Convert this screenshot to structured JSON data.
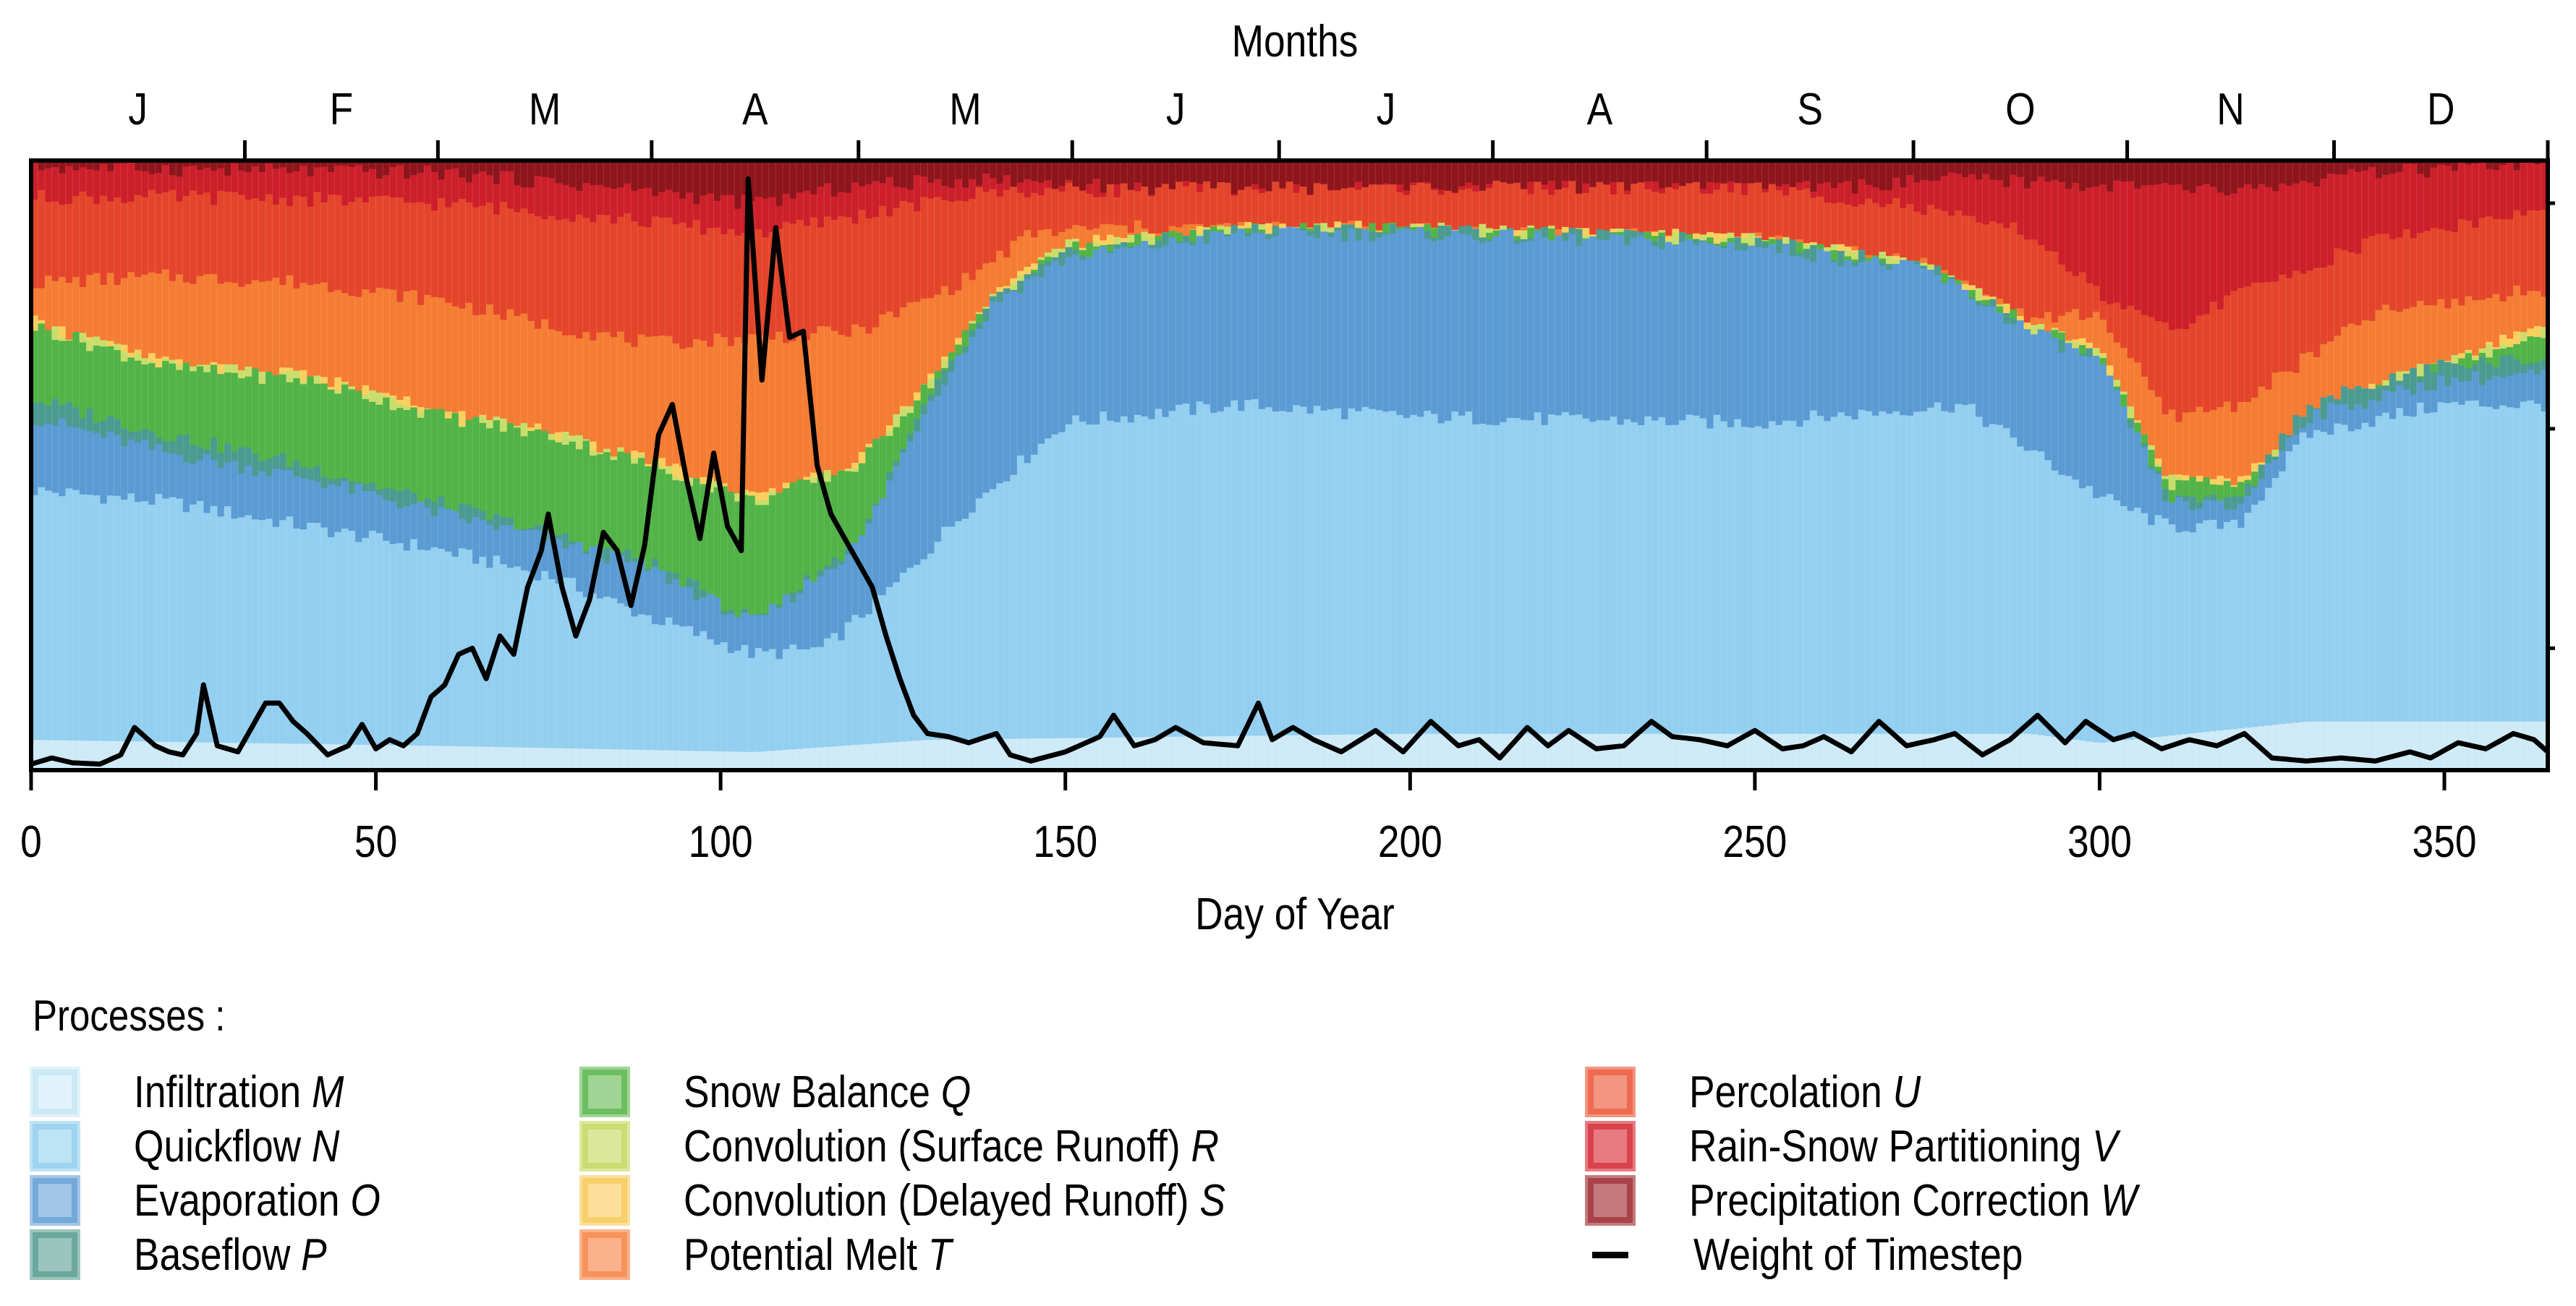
{
  "chart_data": {
    "type": "area",
    "subtype": "stacked-bar-100-percent-with-line",
    "title": "",
    "top_axis_label": "Months",
    "xlabel": "Day of Year",
    "ylabel": "",
    "xlim": [
      0,
      365
    ],
    "ylim": [
      0,
      1
    ],
    "x_ticks": [
      0,
      50,
      100,
      150,
      200,
      250,
      300,
      350
    ],
    "x_tick_labels": [
      "0",
      "50",
      "100",
      "150",
      "200",
      "250",
      "300",
      "350"
    ],
    "month_labels": [
      "J",
      "F",
      "M",
      "A",
      "M",
      "J",
      "J",
      "A",
      "S",
      "O",
      "N",
      "D"
    ],
    "month_start_days": [
      0,
      31,
      59,
      90,
      120,
      151,
      181,
      212,
      243,
      273,
      304,
      334,
      365
    ],
    "grid": false,
    "legend_title": "Processes :",
    "legend_position": "bottom",
    "layers_note": "Each series gives the cumulative upper boundary (fraction of total, 0-1) at keypoint days; layers stack bottom-to-top in listed order; linear interpolation between keypoints.",
    "series": [
      {
        "name": "Infiltration",
        "symbol": "M",
        "color": "#cfeaf7",
        "legend_color": "#e0f3fb",
        "legend_border": "#cde9f6",
        "days": [
          0,
          60,
          105,
          130,
          200,
          290,
          300,
          330,
          365
        ],
        "cum_top": [
          0.05,
          0.04,
          0.03,
          0.05,
          0.06,
          0.06,
          0.045,
          0.08,
          0.08
        ]
      },
      {
        "name": "Quickflow",
        "symbol": "N",
        "color": "#93cff0",
        "legend_color": "#bde3f5",
        "legend_border": "#9fd4f0",
        "days": [
          0,
          20,
          40,
          60,
          75,
          90,
          105,
          115,
          125,
          135,
          150,
          175,
          200,
          250,
          280,
          300,
          310,
          320,
          330,
          350,
          365
        ],
        "cum_top": [
          0.46,
          0.44,
          0.4,
          0.36,
          0.32,
          0.25,
          0.19,
          0.2,
          0.3,
          0.42,
          0.57,
          0.6,
          0.58,
          0.57,
          0.6,
          0.45,
          0.4,
          0.4,
          0.55,
          0.6,
          0.6
        ]
      },
      {
        "name": "Evaporation",
        "symbol": "O",
        "color": "#5b9bd3",
        "legend_color": "#a3c5e6",
        "legend_border": "#74a9da",
        "days": [
          0,
          20,
          40,
          60,
          75,
          90,
          105,
          120,
          130,
          140,
          150,
          175,
          200,
          250,
          275,
          290,
          300,
          310,
          320,
          330,
          350,
          365
        ],
        "cum_top": [
          0.58,
          0.52,
          0.48,
          0.42,
          0.38,
          0.33,
          0.24,
          0.37,
          0.6,
          0.77,
          0.84,
          0.88,
          0.88,
          0.86,
          0.82,
          0.72,
          0.67,
          0.44,
          0.43,
          0.58,
          0.64,
          0.65
        ]
      },
      {
        "name": "Baseflow",
        "symbol": "P",
        "color": "#4b9b91",
        "legend_color": "#9bc4bd",
        "legend_border": "#6aa89e",
        "days": [
          0,
          20,
          40,
          60,
          75,
          90,
          105,
          120,
          130,
          140,
          150,
          175,
          200,
          250,
          275,
          290,
          300,
          310,
          320,
          330,
          350,
          365
        ],
        "cum_top": [
          0.61,
          0.55,
          0.5,
          0.435,
          0.39,
          0.34,
          0.245,
          0.375,
          0.605,
          0.775,
          0.845,
          0.886,
          0.886,
          0.868,
          0.826,
          0.724,
          0.674,
          0.446,
          0.437,
          0.6,
          0.665,
          0.675
        ]
      },
      {
        "name": "Snow Balance",
        "symbol": "Q",
        "color": "#52b347",
        "legend_color": "#a1d595",
        "legend_border": "#6cbf60",
        "days": [
          0,
          20,
          40,
          60,
          75,
          90,
          105,
          120,
          130,
          140,
          150,
          175,
          200,
          250,
          275,
          290,
          300,
          310,
          320,
          340,
          365
        ],
        "cum_top": [
          0.73,
          0.66,
          0.64,
          0.58,
          0.55,
          0.5,
          0.44,
          0.5,
          0.63,
          0.78,
          0.855,
          0.886,
          0.886,
          0.868,
          0.826,
          0.728,
          0.68,
          0.47,
          0.47,
          0.63,
          0.72
        ]
      },
      {
        "name": "Convolution (Surface Runoff)",
        "symbol": "R",
        "color": "#c9dd6b",
        "legend_color": "#dbe89c",
        "legend_border": "#cbdc74",
        "days": [
          0,
          20,
          40,
          60,
          75,
          90,
          105,
          120,
          130,
          140,
          150,
          175,
          200,
          250,
          275,
          290,
          300,
          310,
          320,
          340,
          365
        ],
        "cum_top": [
          0.733,
          0.663,
          0.643,
          0.583,
          0.553,
          0.503,
          0.443,
          0.503,
          0.633,
          0.783,
          0.858,
          0.888,
          0.888,
          0.87,
          0.828,
          0.731,
          0.683,
          0.473,
          0.473,
          0.633,
          0.723
        ]
      },
      {
        "name": "Convolution (Delayed Runoff)",
        "symbol": "S",
        "color": "#f9cf5e",
        "legend_color": "#fbdf9b",
        "legend_border": "#f7cf6b",
        "days": [
          0,
          20,
          40,
          60,
          75,
          90,
          105,
          120,
          130,
          140,
          150,
          175,
          200,
          250,
          275,
          290,
          300,
          310,
          320,
          340,
          365
        ],
        "cum_top": [
          0.736,
          0.666,
          0.646,
          0.586,
          0.556,
          0.506,
          0.446,
          0.506,
          0.636,
          0.786,
          0.861,
          0.89,
          0.89,
          0.872,
          0.83,
          0.734,
          0.686,
          0.476,
          0.476,
          0.636,
          0.726
        ]
      },
      {
        "name": "Potential Melt",
        "symbol": "T",
        "color": "#f57c33",
        "legend_color": "#fbb28c",
        "legend_border": "#f7925a",
        "days": [
          0,
          20,
          40,
          60,
          75,
          90,
          105,
          120,
          135,
          145,
          155,
          175,
          200,
          250,
          275,
          290,
          300,
          310,
          320,
          340,
          365
        ],
        "cum_top": [
          0.8,
          0.81,
          0.8,
          0.77,
          0.73,
          0.7,
          0.71,
          0.72,
          0.8,
          0.88,
          0.89,
          0.89,
          0.89,
          0.872,
          0.83,
          0.74,
          0.75,
          0.58,
          0.6,
          0.75,
          0.79
        ]
      },
      {
        "name": "Percolation",
        "symbol": "U",
        "color": "#e4452a",
        "legend_color": "#f29680",
        "legend_border": "#ee6b52",
        "days": [
          0,
          30,
          60,
          90,
          105,
          120,
          140,
          175,
          200,
          250,
          270,
          290,
          300,
          310,
          320,
          340,
          365
        ],
        "cum_top": [
          0.94,
          0.94,
          0.93,
          0.9,
          0.88,
          0.91,
          0.95,
          0.955,
          0.955,
          0.955,
          0.93,
          0.88,
          0.78,
          0.72,
          0.78,
          0.87,
          0.92
        ]
      },
      {
        "name": "Rain-Snow Partitioning",
        "symbol": "V",
        "color": "#cd1f2a",
        "legend_color": "#e87b82",
        "legend_border": "#d9434d",
        "days": [
          0,
          30,
          60,
          90,
          105,
          120,
          140,
          160,
          200,
          260,
          280,
          300,
          320,
          340,
          365
        ],
        "cum_top": [
          0.99,
          0.985,
          0.98,
          0.95,
          0.93,
          0.96,
          0.97,
          0.955,
          0.955,
          0.955,
          0.97,
          0.96,
          0.95,
          0.98,
          0.995
        ]
      },
      {
        "name": "Precipitation Correction",
        "symbol": "W",
        "color": "#8e151b",
        "legend_color": "#c47a7c",
        "legend_border": "#a8434a",
        "days": [
          0,
          365
        ],
        "cum_top": [
          1.0,
          1.0
        ]
      }
    ],
    "line": {
      "name": "Weight of Timestep",
      "color": "#000000",
      "note": "values as fraction of plot height (0 = bottom, 1 = top)",
      "days": [
        0,
        3,
        6,
        10,
        13,
        15,
        18,
        20,
        22,
        24,
        25,
        27,
        30,
        32,
        34,
        36,
        38,
        40,
        43,
        46,
        48,
        50,
        52,
        54,
        56,
        58,
        60,
        62,
        64,
        66,
        68,
        70,
        72,
        74,
        75,
        77,
        79,
        81,
        83,
        85,
        87,
        89,
        91,
        93,
        95,
        97,
        99,
        101,
        103,
        104,
        106,
        108,
        110,
        112,
        114,
        116,
        118,
        120,
        122,
        124,
        126,
        128,
        130,
        133,
        136,
        140,
        142,
        145,
        150,
        155,
        157,
        160,
        163,
        166,
        170,
        175,
        178,
        180,
        183,
        186,
        190,
        195,
        199,
        203,
        207,
        210,
        213,
        217,
        220,
        223,
        227,
        231,
        235,
        238,
        242,
        246,
        250,
        254,
        257,
        260,
        264,
        268,
        272,
        276,
        279,
        283,
        287,
        291,
        295,
        298,
        302,
        305,
        309,
        313,
        317,
        321,
        325,
        330,
        335,
        340,
        345,
        348,
        352,
        356,
        360,
        363,
        365
      ],
      "values": [
        0.01,
        0.02,
        0.012,
        0.01,
        0.025,
        0.07,
        0.04,
        0.03,
        0.025,
        0.06,
        0.14,
        0.04,
        0.03,
        0.07,
        0.11,
        0.11,
        0.08,
        0.06,
        0.025,
        0.04,
        0.075,
        0.035,
        0.05,
        0.04,
        0.06,
        0.12,
        0.14,
        0.19,
        0.2,
        0.15,
        0.22,
        0.19,
        0.3,
        0.36,
        0.42,
        0.3,
        0.22,
        0.28,
        0.39,
        0.36,
        0.27,
        0.37,
        0.55,
        0.6,
        0.48,
        0.38,
        0.52,
        0.4,
        0.36,
        0.97,
        0.64,
        0.89,
        0.71,
        0.72,
        0.5,
        0.42,
        0.38,
        0.34,
        0.3,
        0.22,
        0.15,
        0.09,
        0.06,
        0.055,
        0.045,
        0.06,
        0.025,
        0.015,
        0.03,
        0.055,
        0.09,
        0.04,
        0.05,
        0.07,
        0.045,
        0.04,
        0.11,
        0.05,
        0.07,
        0.05,
        0.03,
        0.065,
        0.03,
        0.08,
        0.04,
        0.05,
        0.02,
        0.07,
        0.04,
        0.065,
        0.035,
        0.04,
        0.08,
        0.055,
        0.05,
        0.04,
        0.065,
        0.035,
        0.04,
        0.055,
        0.03,
        0.08,
        0.04,
        0.05,
        0.06,
        0.025,
        0.05,
        0.09,
        0.045,
        0.08,
        0.05,
        0.06,
        0.035,
        0.05,
        0.04,
        0.06,
        0.02,
        0.015,
        0.02,
        0.015,
        0.03,
        0.02,
        0.045,
        0.035,
        0.06,
        0.05,
        0.03
      ]
    }
  }
}
